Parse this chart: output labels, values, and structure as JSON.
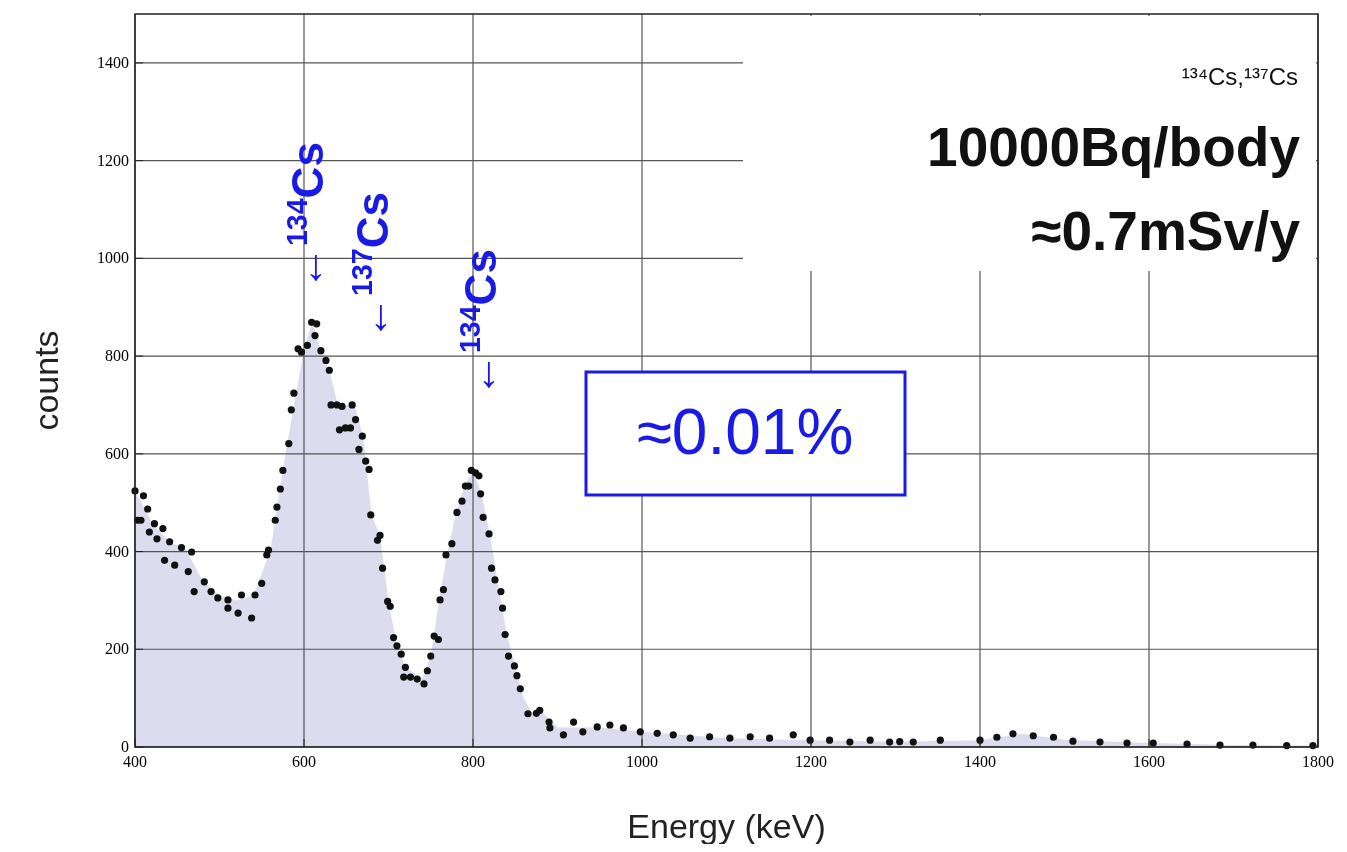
{
  "chart_data": {
    "type": "scatter",
    "xlabel": "Energy (keV)",
    "ylabel": "counts",
    "xlim": [
      400,
      1800
    ],
    "ylim": [
      0,
      1500
    ],
    "xticks": [
      400,
      600,
      800,
      1000,
      1200,
      1400,
      1600,
      1800
    ],
    "yticks": [
      0,
      200,
      400,
      600,
      800,
      1000,
      1200,
      1400
    ],
    "grid": true,
    "series": [
      {
        "type": "area",
        "color": "#dddcee",
        "x": [
          400,
          420,
          440,
          460,
          480,
          500,
          520,
          540,
          560,
          580,
          600,
          610,
          620,
          630,
          640,
          660,
          670,
          680,
          690,
          700,
          710,
          720,
          740,
          750,
          760,
          770,
          780,
          790,
          800,
          810,
          820,
          830,
          840,
          850,
          860,
          870,
          880,
          900,
          950,
          1000,
          1100,
          1200,
          1300,
          1400,
          1450,
          1500,
          1600,
          1700,
          1800
        ],
        "values": [
          525,
          460,
          420,
          405,
          340,
          310,
          300,
          310,
          400,
          620,
          815,
          870,
          811,
          771,
          700,
          700,
          636,
          475,
          433,
          298,
          207,
          163,
          140,
          186,
          301,
          400,
          480,
          534,
          566,
          518,
          436,
          330,
          230,
          166,
          100,
          70,
          75,
          40,
          40,
          31,
          18,
          14,
          11,
          14,
          27,
          15,
          8,
          4,
          3
        ]
      },
      {
        "marker": "circle",
        "color": "#111111",
        "x": [
          400,
          403,
          407,
          410,
          415,
          417,
          423,
          426,
          433,
          435,
          441,
          447,
          455,
          463,
          467,
          470,
          482,
          490,
          498,
          510,
          510,
          522,
          526,
          538,
          542,
          550,
          556,
          558,
          566,
          568,
          572,
          575,
          582,
          585,
          588,
          593,
          597,
          604,
          609,
          613,
          615,
          620,
          626,
          630,
          632,
          639,
          642,
          645,
          649,
          655,
          657,
          661,
          665,
          669,
          673,
          677,
          679,
          687,
          690,
          693,
          699,
          702,
          706,
          710,
          715,
          718,
          720,
          726,
          734,
          742,
          746,
          750,
          754,
          759,
          761,
          765,
          768,
          775,
          781,
          787,
          791,
          795,
          798,
          803,
          807,
          809,
          812,
          819,
          822,
          826,
          833,
          835,
          838,
          842,
          849,
          852,
          856,
          865,
          875,
          879,
          890,
          891,
          907,
          919,
          930,
          947,
          962,
          978,
          998,
          1018,
          1037,
          1057,
          1080,
          1104,
          1128,
          1151,
          1179,
          1199,
          1222,
          1246,
          1270,
          1293,
          1305,
          1321,
          1353,
          1400,
          1420,
          1439,
          1463,
          1487,
          1510,
          1542,
          1574,
          1605,
          1645,
          1684,
          1723,
          1763,
          1794
        ],
        "values": [
          524,
          464,
          464,
          514,
          487,
          440,
          457,
          426,
          447,
          382,
          420,
          372,
          408,
          359,
          399,
          318,
          338,
          318,
          305,
          301,
          284,
          274,
          311,
          264,
          311,
          335,
          393,
          403,
          464,
          491,
          528,
          566,
          621,
          690,
          724,
          815,
          808,
          822,
          869,
          842,
          866,
          811,
          791,
          771,
          700,
          700,
          649,
          697,
          653,
          653,
          700,
          670,
          609,
          636,
          585,
          568,
          475,
          423,
          433,
          366,
          298,
          288,
          224,
          207,
          190,
          143,
          163,
          143,
          139,
          129,
          156,
          186,
          227,
          220,
          301,
          322,
          393,
          416,
          480,
          503,
          534,
          534,
          566,
          561,
          555,
          518,
          470,
          436,
          366,
          342,
          318,
          284,
          230,
          186,
          166,
          146,
          119,
          68,
          69,
          75,
          51,
          39,
          25,
          51,
          31,
          41,
          45,
          39,
          31,
          28,
          25,
          18,
          21,
          18,
          21,
          18,
          25,
          14,
          14,
          10,
          14,
          10,
          11,
          10,
          14,
          14,
          20,
          27,
          23,
          20,
          12,
          10,
          8,
          8,
          6,
          4,
          4,
          3,
          3
        ]
      }
    ],
    "annotations": [
      "¹³⁴Cs,¹³⁷Cs",
      "10000Bq/body",
      "≈0.7mSv/y",
      "≈0.01%",
      "←$^{134}$Cs",
      "←$^{137}$Cs",
      "←$^{134}$Cs"
    ]
  }
}
